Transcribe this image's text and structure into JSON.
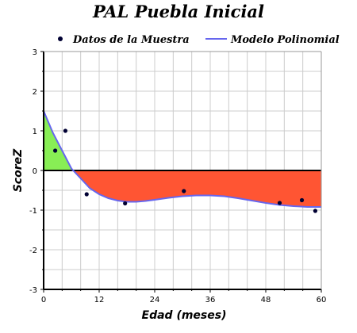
{
  "chart_data": {
    "type": "scatter",
    "title": "PAL Puebla Inicial",
    "xlabel": "Edad (meses)",
    "ylabel": "ScoreZ",
    "xlim": [
      0,
      60
    ],
    "ylim": [
      -3,
      3
    ],
    "x_ticks": [
      0,
      12,
      24,
      36,
      48,
      60
    ],
    "y_ticks": [
      -3,
      -2,
      -1,
      0,
      1,
      2,
      3
    ],
    "x_tick_labels": [
      "0",
      "12",
      "24",
      "36",
      "48",
      "60"
    ],
    "y_tick_labels": [
      "-3",
      "-2",
      "-1",
      "0",
      "1",
      "2",
      "3"
    ],
    "grid": true,
    "legend_position": "top",
    "series": [
      {
        "name": "Datos de la Muestra",
        "kind": "scatter",
        "color": "#000033",
        "points": [
          {
            "x": 2.5,
            "y": 0.5
          },
          {
            "x": 4.7,
            "y": 1.0
          },
          {
            "x": 9.3,
            "y": -0.6
          },
          {
            "x": 17.6,
            "y": -0.83
          },
          {
            "x": 30.3,
            "y": -0.52
          },
          {
            "x": 51.0,
            "y": -0.82
          },
          {
            "x": 55.8,
            "y": -0.75
          },
          {
            "x": 58.7,
            "y": -1.02
          }
        ]
      },
      {
        "name": "Modelo Polinomial",
        "kind": "line",
        "color": "#6666ee",
        "points": [
          {
            "x": 0,
            "y": 1.5
          },
          {
            "x": 2,
            "y": 0.95
          },
          {
            "x": 4,
            "y": 0.5
          },
          {
            "x": 6,
            "y": 0.05
          },
          {
            "x": 8,
            "y": -0.2
          },
          {
            "x": 10,
            "y": -0.45
          },
          {
            "x": 12,
            "y": -0.6
          },
          {
            "x": 14,
            "y": -0.7
          },
          {
            "x": 16,
            "y": -0.76
          },
          {
            "x": 18,
            "y": -0.79
          },
          {
            "x": 20,
            "y": -0.79
          },
          {
            "x": 22,
            "y": -0.77
          },
          {
            "x": 24,
            "y": -0.74
          },
          {
            "x": 27,
            "y": -0.69
          },
          {
            "x": 30,
            "y": -0.65
          },
          {
            "x": 33,
            "y": -0.63
          },
          {
            "x": 36,
            "y": -0.63
          },
          {
            "x": 39,
            "y": -0.65
          },
          {
            "x": 42,
            "y": -0.7
          },
          {
            "x": 45,
            "y": -0.76
          },
          {
            "x": 48,
            "y": -0.82
          },
          {
            "x": 51,
            "y": -0.87
          },
          {
            "x": 54,
            "y": -0.9
          },
          {
            "x": 57,
            "y": -0.92
          },
          {
            "x": 60,
            "y": -0.92
          }
        ]
      }
    ],
    "fill_above_zero_color": "#88ee55",
    "fill_below_zero_color": "#ff5533"
  }
}
